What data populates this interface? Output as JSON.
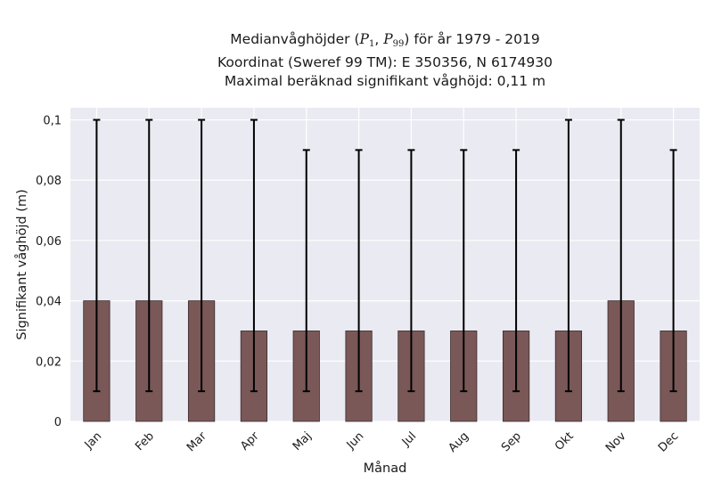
{
  "chart_data": {
    "type": "bar",
    "title_lines": {
      "line1_prefix": "Medianvåghöjder (",
      "p_low_symbol": "P",
      "p_low_sub": "1",
      "separator": ", ",
      "p_high_symbol": "P",
      "p_high_sub": "99",
      "line1_suffix": ") för år 1979 - 2019",
      "line2": "Koordinat (Sweref 99 TM): E 350356, N 6174930",
      "line3": "Maximal beräknad signifikant våghöjd: 0,11 m"
    },
    "xlabel": "Månad",
    "ylabel": "Signifikant våghöjd (m)",
    "ylim": [
      0,
      0.104
    ],
    "yticks": [
      0,
      0.02,
      0.04,
      0.06,
      0.08,
      0.1
    ],
    "ytick_labels": [
      "0",
      "0,02",
      "0,04",
      "0,06",
      "0,08",
      "0,1"
    ],
    "categories": [
      "Jan",
      "Feb",
      "Mar",
      "Apr",
      "Maj",
      "Jun",
      "Jul",
      "Aug",
      "Sep",
      "Okt",
      "Nov",
      "Dec"
    ],
    "values": [
      0.04,
      0.04,
      0.04,
      0.03,
      0.03,
      0.03,
      0.03,
      0.03,
      0.03,
      0.03,
      0.04,
      0.03
    ],
    "p1": [
      0.01,
      0.01,
      0.01,
      0.01,
      0.01,
      0.01,
      0.01,
      0.01,
      0.01,
      0.01,
      0.01,
      0.01
    ],
    "p99": [
      0.1,
      0.1,
      0.1,
      0.1,
      0.09,
      0.09,
      0.09,
      0.09,
      0.09,
      0.1,
      0.1,
      0.09
    ],
    "grid": true,
    "colors": {
      "bar": "#7a5858",
      "bar_edge": "#3a2a2a",
      "errorbar": "#000000",
      "plot_bg": "#eaeaf2",
      "grid": "#ffffff"
    }
  }
}
